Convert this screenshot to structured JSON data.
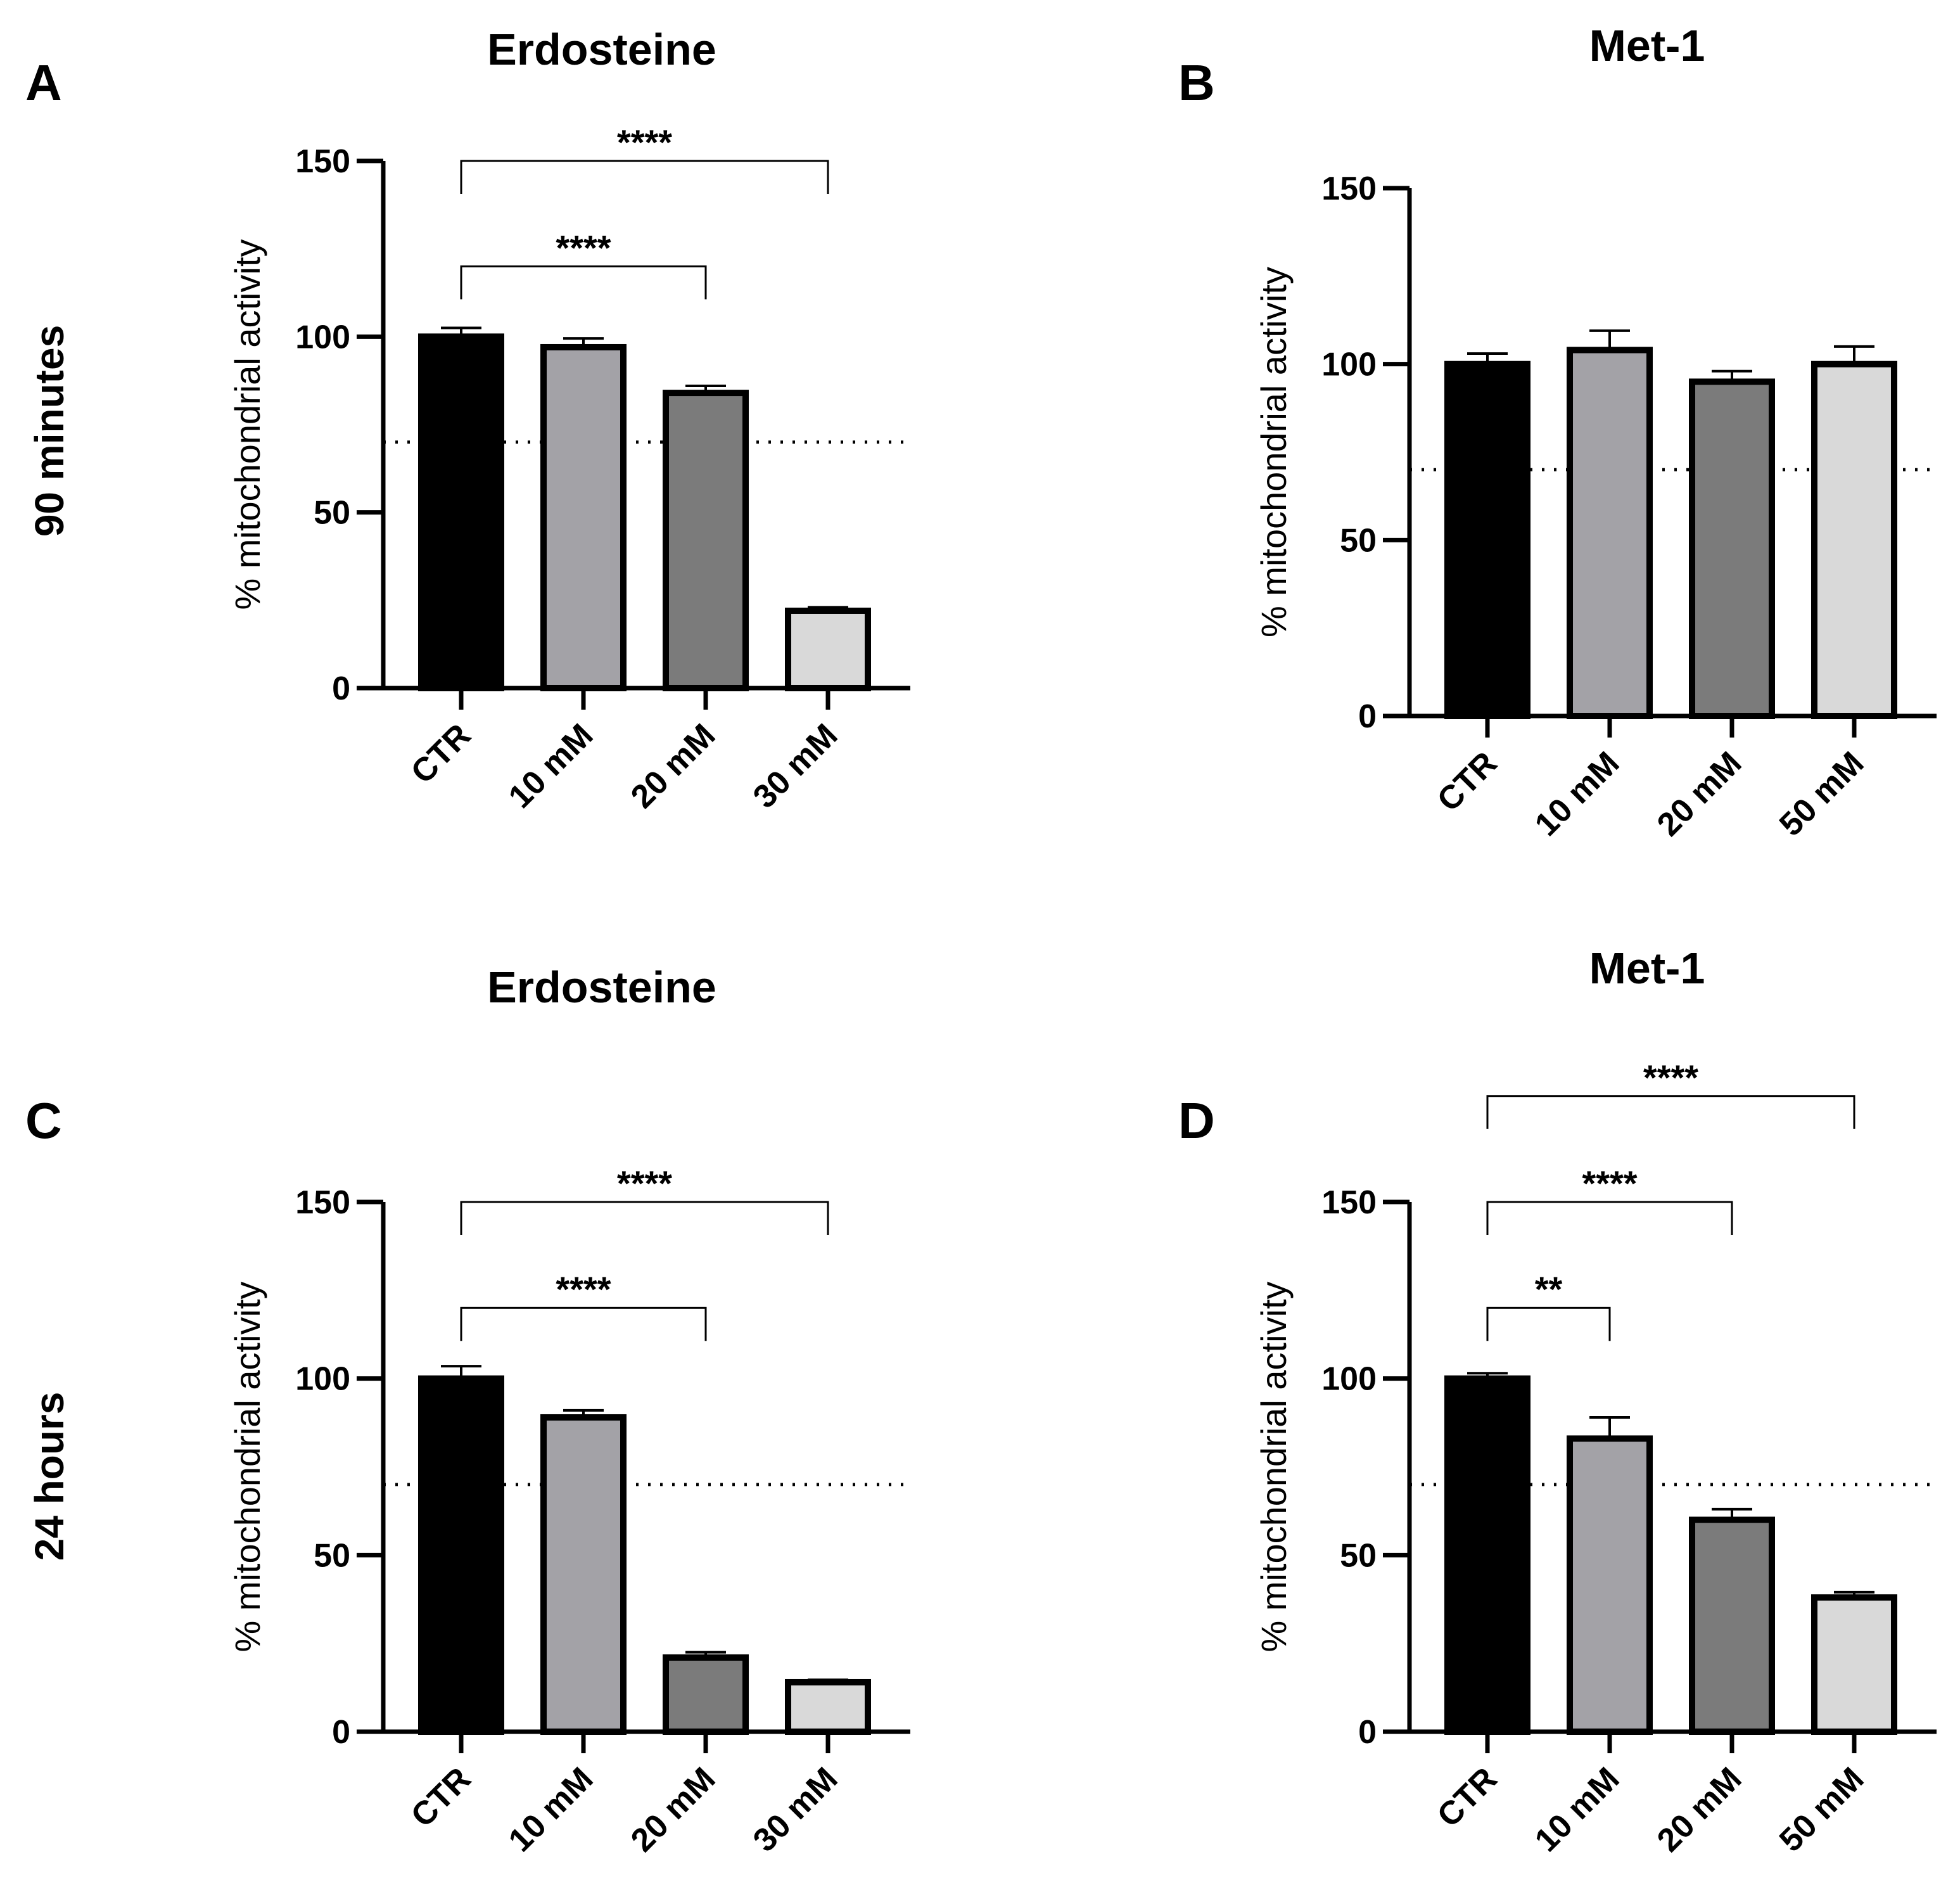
{
  "row_labels": [
    "90 minutes",
    "24 hours"
  ],
  "chart_data": [
    {
      "panel": "A",
      "type": "bar",
      "title": "Erdosteine",
      "ylabel": "%  mitochondrial activity",
      "xlabel": "",
      "ylim": [
        0,
        150
      ],
      "yticks": [
        "0",
        "50",
        "100",
        "150"
      ],
      "categories": [
        "CTR",
        "10 mM",
        "20 mM",
        "30 mM"
      ],
      "values": [
        100,
        97,
        84,
        22
      ],
      "errors": [
        2.5,
        2.5,
        2,
        1
      ],
      "colors": [
        "#000000",
        "#a3a2a7",
        "#7b7b7b",
        "#d9d9d9"
      ],
      "threshold": 70,
      "significance": [
        {
          "from": 0,
          "to": 2,
          "label": "****",
          "y": 120
        },
        {
          "from": 0,
          "to": 3,
          "label": "****",
          "y": 150
        }
      ]
    },
    {
      "panel": "B",
      "type": "bar",
      "title": "Met-1",
      "ylabel": "%  mitochondrial activity",
      "xlabel": "",
      "ylim": [
        0,
        150
      ],
      "yticks": [
        "0",
        "50",
        "100",
        "150"
      ],
      "categories": [
        "CTR",
        "10 mM",
        "20 mM",
        "50 mM"
      ],
      "values": [
        100,
        104,
        95,
        100
      ],
      "errors": [
        3,
        5.5,
        3,
        5
      ],
      "colors": [
        "#000000",
        "#a3a2a7",
        "#7b7b7b",
        "#d9d9d9"
      ],
      "threshold": 70,
      "significance": []
    },
    {
      "panel": "C",
      "type": "bar",
      "title": "Erdosteine",
      "ylabel": "%  mitochondrial activity",
      "xlabel": "",
      "ylim": [
        0,
        150
      ],
      "yticks": [
        "0",
        "50",
        "100",
        "150"
      ],
      "categories": [
        "CTR",
        "10 mM",
        "20 mM",
        "30 mM"
      ],
      "values": [
        100,
        89,
        21,
        14
      ],
      "errors": [
        3.5,
        2,
        1.5,
        0.7
      ],
      "colors": [
        "#000000",
        "#a3a2a7",
        "#7b7b7b",
        "#d9d9d9"
      ],
      "threshold": 70,
      "significance": [
        {
          "from": 0,
          "to": 2,
          "label": "****",
          "y": 120
        },
        {
          "from": 0,
          "to": 3,
          "label": "****",
          "y": 150
        }
      ]
    },
    {
      "panel": "D",
      "type": "bar",
      "title": "Met-1",
      "ylabel": "%  mitochondrial activity",
      "xlabel": "",
      "ylim": [
        0,
        150
      ],
      "yticks": [
        "0",
        "50",
        "100",
        "150"
      ],
      "categories": [
        "CTR",
        "10 mM",
        "20 mM",
        "50 mM"
      ],
      "values": [
        100,
        83,
        60,
        38
      ],
      "errors": [
        1.5,
        6,
        3,
        1.5
      ],
      "colors": [
        "#000000",
        "#a3a2a7",
        "#7b7b7b",
        "#d9d9d9"
      ],
      "threshold": 70,
      "significance": [
        {
          "from": 0,
          "to": 1,
          "label": "**",
          "y": 120
        },
        {
          "from": 0,
          "to": 2,
          "label": "****",
          "y": 150
        },
        {
          "from": 0,
          "to": 3,
          "label": "****",
          "y": 180
        }
      ]
    }
  ]
}
